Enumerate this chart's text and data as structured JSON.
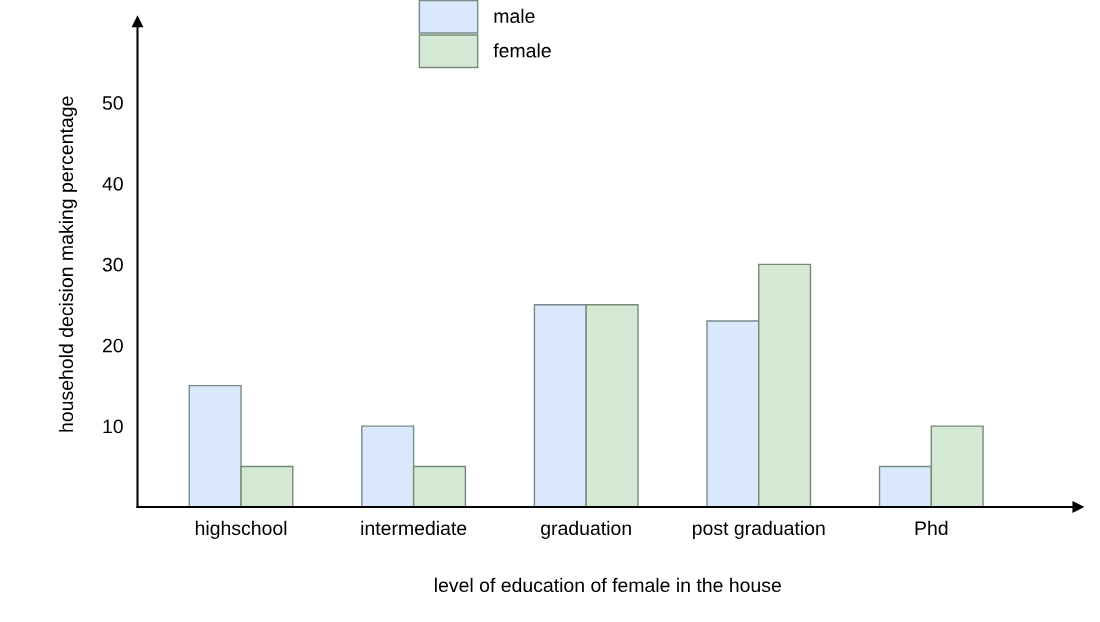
{
  "chart_data": {
    "type": "bar",
    "xlabel": "level of education of female in the house",
    "ylabel": "household decision making percentage",
    "categories": [
      "highschool",
      "intermediate",
      "graduation",
      "post graduation",
      "Phd"
    ],
    "series": [
      {
        "name": "male",
        "color": "#dae8fc",
        "values": [
          15,
          10,
          25,
          23,
          5
        ]
      },
      {
        "name": "female",
        "color": "#d5e8d4",
        "values": [
          5,
          5,
          25,
          30,
          10
        ]
      }
    ],
    "ylim": [
      0,
      60
    ],
    "yticks": [
      10,
      20,
      30,
      40,
      50
    ],
    "grid": false,
    "legend": "top"
  }
}
